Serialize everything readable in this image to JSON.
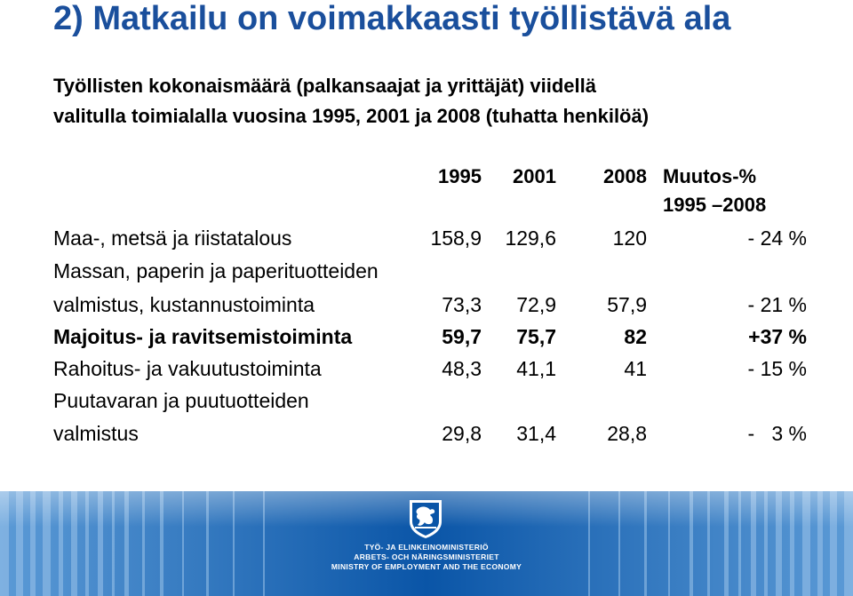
{
  "title": "2) Matkailu on voimakkaasti työllistävä ala",
  "subtitle": {
    "line1": "Työllisten kokonaismäärä (palkansaajat ja yrittäjät) viidellä",
    "line2": "valitulla toimialalla vuosina 1995, 2001 ja 2008 (tuhatta henkilöä)"
  },
  "table": {
    "headers": {
      "y1995": "1995",
      "y2001": "2001",
      "y2008": "2008",
      "change": "Muutos-%",
      "change_period": "1995 –2008"
    },
    "rows": [
      {
        "label": "Maa-, metsä ja riistatalous",
        "label2": "",
        "v1995": "158,9",
        "v2001": "129,6",
        "v2008": "120",
        "change": "- 24 %",
        "bold": false
      },
      {
        "label": "Massan, paperin ja paperituotteiden",
        "label2": "valmistus, kustannustoiminta",
        "v1995": "73,3",
        "v2001": "72,9",
        "v2008": "57,9",
        "change": "- 21 %",
        "bold": false
      },
      {
        "label": "Majoitus- ja ravitsemistoiminta",
        "label2": "",
        "v1995": "59,7",
        "v2001": "75,7",
        "v2008": "82",
        "change": "+37 %",
        "bold": true
      },
      {
        "label": "Rahoitus- ja vakuutustoiminta",
        "label2": "",
        "v1995": "48,3",
        "v2001": "41,1",
        "v2008": "41",
        "change": "- 15 %",
        "bold": false
      },
      {
        "label": "Puutavaran ja puutuotteiden",
        "label2": "valmistus",
        "v1995": "29,8",
        "v2001": "31,4",
        "v2008": "28,8",
        "change": "-   3 %",
        "bold": false
      }
    ]
  },
  "footer": {
    "ministry_fi": "TYÖ- JA ELINKEINOMINISTERIÖ",
    "ministry_sv": "ARBETS- OCH NÄRINGSMINISTERIET",
    "ministry_en": "MINISTRY OF EMPLOYMENT AND THE ECONOMY",
    "crest_icon": "finnish-lion-crest-icon"
  },
  "colors": {
    "title": "#1a4f9c",
    "banner_dark": "#0a55a7",
    "banner_light": "#6fa6da"
  }
}
